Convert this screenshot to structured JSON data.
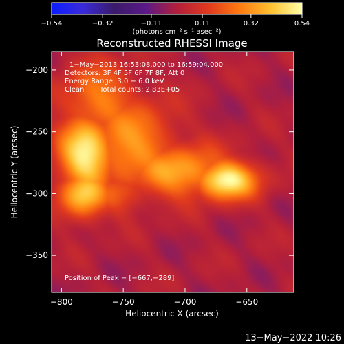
{
  "chart_data": {
    "type": "heatmap",
    "title": "Reconstructed RHESSI Image",
    "xlabel": "Heliocentric X (arcsec)",
    "ylabel": "Heliocentric Y (arcsec)",
    "xlim": [
      -808,
      -612
    ],
    "ylim": [
      -380,
      -185
    ],
    "x_ticks": [
      -800,
      -750,
      -700,
      -650
    ],
    "x_tick_labels": [
      "−800",
      "−750",
      "−700",
      "−650"
    ],
    "y_ticks": [
      -200,
      -250,
      -300,
      -350
    ],
    "y_tick_labels": [
      "−200",
      "−250",
      "−300",
      "−350"
    ],
    "colorbar": {
      "range": [
        -0.54,
        0.54
      ],
      "ticks": [
        -0.54,
        -0.32,
        -0.11,
        0.11,
        0.32,
        0.54
      ],
      "tick_labels": [
        "−0.54",
        "−0.32",
        "−0.11",
        "0.11",
        "0.32",
        "0.54"
      ],
      "unit_label": "(photons cm⁻² s⁻¹ asec⁻²)",
      "colors": [
        "#0b1dff",
        "#3a2bd8",
        "#3a1a6a",
        "#5a1a88",
        "#b21f3c",
        "#e0391e",
        "#ff7a10",
        "#ffc030",
        "#ffffa8"
      ]
    },
    "sources": [
      {
        "x": -780,
        "y": -268,
        "sx": 16,
        "sy": 22,
        "peak": 0.52
      },
      {
        "x": -782,
        "y": -300,
        "sx": 14,
        "sy": 14,
        "peak": 0.44
      },
      {
        "x": -667,
        "y": -289,
        "sx": 18,
        "sy": 11,
        "peak": 0.54
      },
      {
        "x": -705,
        "y": -282,
        "sx": 30,
        "sy": 15,
        "peak": 0.36
      },
      {
        "x": -745,
        "y": -260,
        "sx": 26,
        "sy": 26,
        "peak": 0.33
      },
      {
        "x": -770,
        "y": -225,
        "sx": 22,
        "sy": 22,
        "peak": 0.28
      },
      {
        "x": -755,
        "y": -300,
        "sx": 18,
        "sy": 12,
        "peak": 0.2
      }
    ],
    "peak_position": [
      -667,
      -289
    ],
    "annotations": {
      "time_range": "1−May−2013 16:53:08.000 to 16:59:04.000",
      "detectors": "Detectors: 3F 4F 5F 6F 7F 8F, Att 0",
      "energy": "Energy Range: 3.0 − 6.0 keV",
      "method": "Clean",
      "counts": "Total counts: 2.83E+05",
      "peak": "Position of Peak = [−667,−289]"
    },
    "grid": false
  },
  "footer": {
    "timestamp": "13−May−2022 10:26"
  }
}
